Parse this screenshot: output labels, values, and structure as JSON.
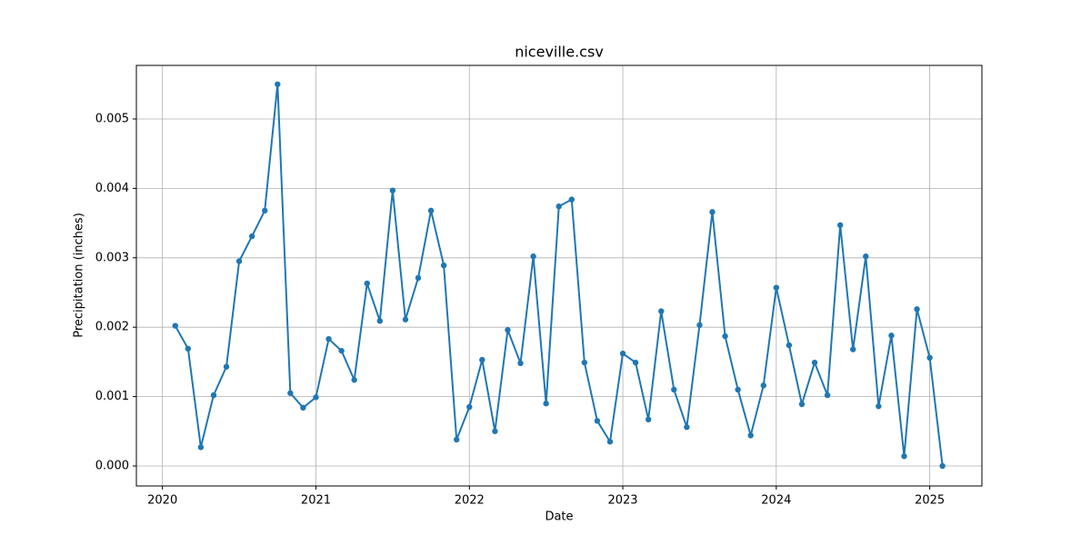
{
  "chart_data": {
    "type": "line",
    "title": "niceville.csv",
    "xlabel": "Date",
    "ylabel": "Precipitation (inches)",
    "x": [
      "2020-01",
      "2020-02",
      "2020-03",
      "2020-04",
      "2020-05",
      "2020-06",
      "2020-07",
      "2020-08",
      "2020-09",
      "2020-10",
      "2020-11",
      "2020-12",
      "2021-01",
      "2021-02",
      "2021-03",
      "2021-04",
      "2021-05",
      "2021-06",
      "2021-07",
      "2021-08",
      "2021-09",
      "2021-10",
      "2021-11",
      "2021-12",
      "2022-01",
      "2022-02",
      "2022-03",
      "2022-04",
      "2022-05",
      "2022-06",
      "2022-07",
      "2022-08",
      "2022-09",
      "2022-10",
      "2022-11",
      "2022-12",
      "2023-01",
      "2023-02",
      "2023-03",
      "2023-04",
      "2023-05",
      "2023-06",
      "2023-07",
      "2023-08",
      "2023-09",
      "2023-10",
      "2023-11",
      "2023-12",
      "2024-01",
      "2024-02",
      "2024-03",
      "2024-04",
      "2024-05",
      "2024-06",
      "2024-07",
      "2024-08",
      "2024-09",
      "2024-10",
      "2024-11",
      "2024-12",
      "2025-01"
    ],
    "series": [
      {
        "name": "Precipitation (inches)",
        "color": "#1f77b4",
        "values": [
          0.00202,
          0.00169,
          0.00027,
          0.00102,
          0.00143,
          0.00295,
          0.00331,
          0.00368,
          0.0055,
          0.00105,
          0.00084,
          0.00099,
          0.00183,
          0.00166,
          0.00124,
          0.00263,
          0.00209,
          0.00397,
          0.00211,
          0.00271,
          0.00368,
          0.00289,
          0.00038,
          0.00085,
          0.00153,
          0.0005,
          0.00196,
          0.00148,
          0.00302,
          0.0009,
          0.00374,
          0.00384,
          0.00149,
          0.00065,
          0.00035,
          0.00162,
          0.00149,
          0.00067,
          0.00223,
          0.0011,
          0.00056,
          0.00203,
          0.00366,
          0.00187,
          0.0011,
          0.00044,
          0.00116,
          0.00257,
          0.00174,
          0.00089,
          0.00149,
          0.00102,
          0.00347,
          0.00168,
          0.00302,
          0.00086,
          0.00188,
          0.00014,
          0.00226,
          0.00156,
          0
        ]
      }
    ],
    "xlim": [
      2019.83,
      2025.34
    ],
    "xticks": [
      2020,
      2021,
      2022,
      2023,
      2024,
      2025
    ],
    "ylim": [
      -0.000288,
      0.005772
    ],
    "yticks": [
      {
        "value": 0,
        "label": "0.000"
      },
      {
        "value": 0.001,
        "label": "0.001"
      },
      {
        "value": 0.002,
        "label": "0.002"
      },
      {
        "value": 0.003,
        "label": "0.003"
      },
      {
        "value": 0.004,
        "label": "0.004"
      },
      {
        "value": 0.005,
        "label": "0.005"
      }
    ],
    "grid": true
  }
}
